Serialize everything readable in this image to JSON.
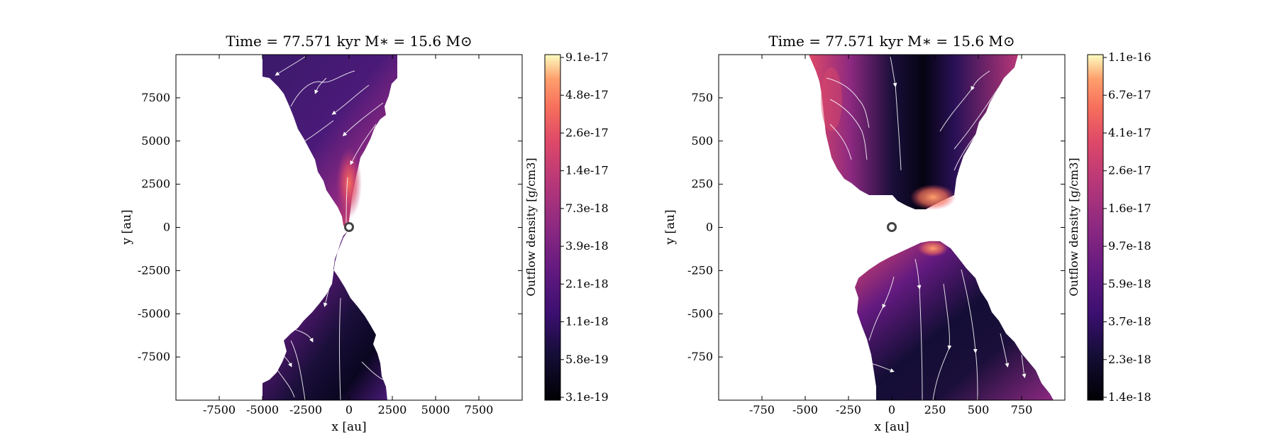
{
  "chart_data": [
    {
      "type": "heatmap",
      "title": "Time = 77.571 kyr    M∗ = 15.6 M⊙",
      "xlabel": "x [au]",
      "ylabel": "y [au]",
      "xlim": [
        -10000,
        10000
      ],
      "ylim": [
        -10000,
        10000
      ],
      "xticks": [
        -7500,
        -5000,
        -2500,
        0,
        2500,
        5000,
        7500
      ],
      "yticks": [
        7500,
        5000,
        2500,
        0,
        -2500,
        -5000,
        -7500
      ],
      "xtick_labels": [
        "-7500",
        "-5000",
        "-2500",
        "0",
        "2500",
        "5000",
        "7500"
      ],
      "ytick_labels": [
        "7500",
        "5000",
        "2500",
        "0",
        "-2500",
        "-5000",
        "-7500"
      ],
      "colorbar": {
        "label": "Outflow density [g/cm3]",
        "scale": "log",
        "colormap": "magma",
        "ticks": [
          "9.1e-17",
          "4.8e-17",
          "2.6e-17",
          "1.4e-17",
          "7.3e-18",
          "3.9e-18",
          "2.1e-18",
          "1.1e-18",
          "5.8e-19",
          "3.1e-19"
        ]
      },
      "star_marker": [
        0,
        0
      ],
      "streamlines": "white",
      "grid": false
    },
    {
      "type": "heatmap",
      "title": "Time = 77.571 kyr    M∗ = 15.6 M⊙",
      "xlabel": "x [au]",
      "ylabel": "y [au]",
      "xlim": [
        -1000,
        1000
      ],
      "ylim": [
        -1000,
        1000
      ],
      "xticks": [
        -750,
        -500,
        -250,
        0,
        250,
        500,
        750
      ],
      "yticks": [
        750,
        500,
        250,
        0,
        -250,
        -500,
        -750
      ],
      "xtick_labels": [
        "-750",
        "-500",
        "-250",
        "0",
        "250",
        "500",
        "750"
      ],
      "ytick_labels": [
        "750",
        "500",
        "250",
        "0",
        "-250",
        "-500",
        "-750"
      ],
      "colorbar": {
        "label": "Outflow density [g/cm3]",
        "scale": "log",
        "colormap": "magma",
        "ticks": [
          "1.1e-16",
          "6.7e-17",
          "4.1e-17",
          "2.6e-17",
          "1.6e-17",
          "9.7e-18",
          "5.9e-18",
          "3.7e-18",
          "2.3e-18",
          "1.4e-18"
        ]
      },
      "star_marker": [
        0,
        0
      ],
      "streamlines": "white",
      "grid": false
    }
  ]
}
